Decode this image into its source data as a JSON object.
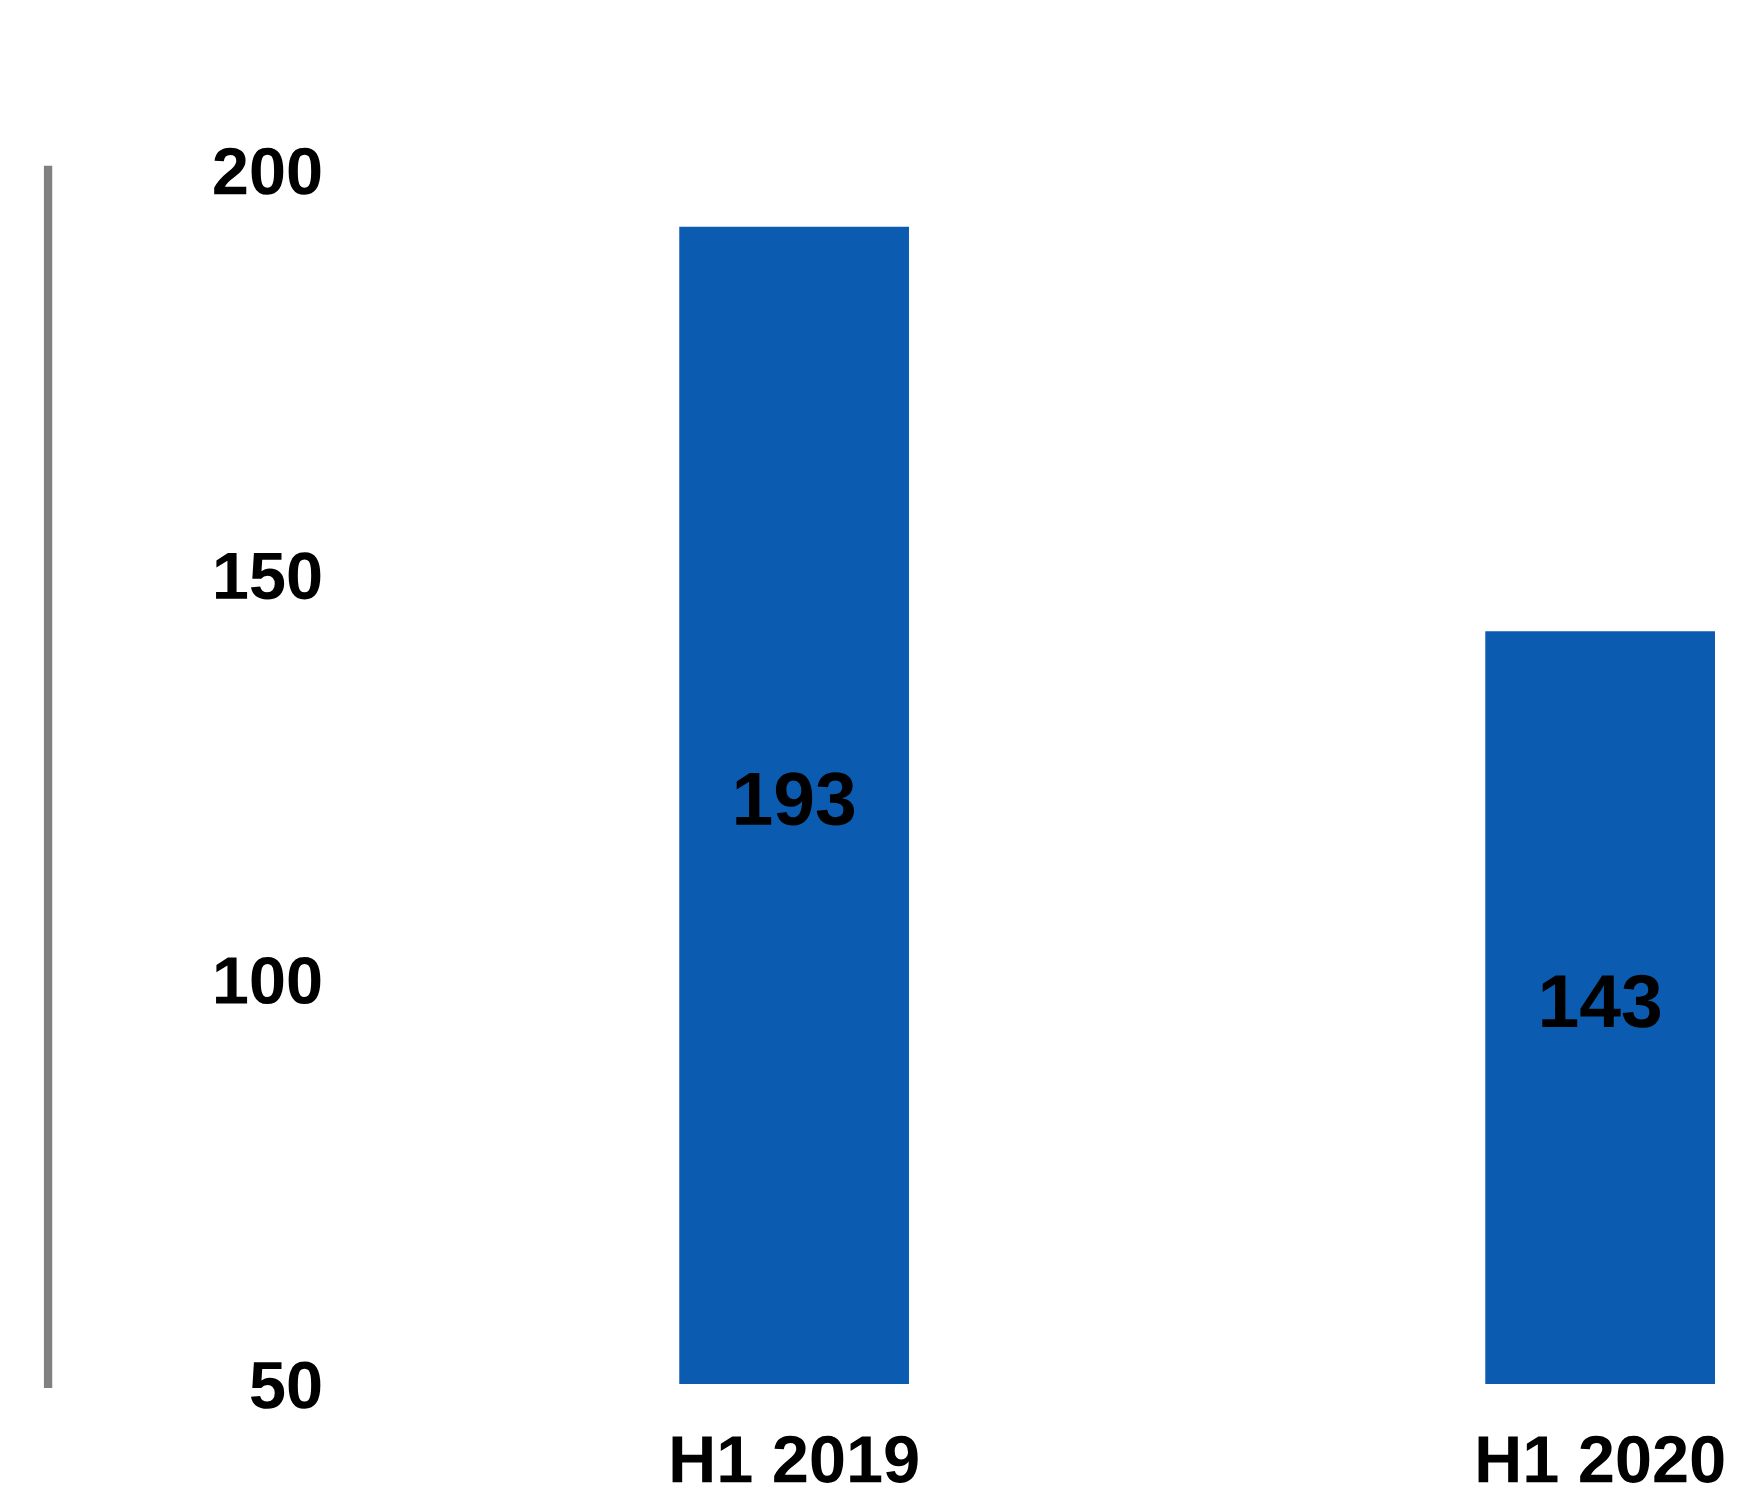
{
  "chart_data": {
    "type": "bar",
    "categories": [
      "H1 2019",
      "H1 2020"
    ],
    "values": [
      193,
      143
    ],
    "color": "#0b5cb0",
    "ylim": [
      50,
      200
    ],
    "yticks": [
      50,
      100,
      150,
      200
    ],
    "data_labels": true,
    "grid": false
  }
}
